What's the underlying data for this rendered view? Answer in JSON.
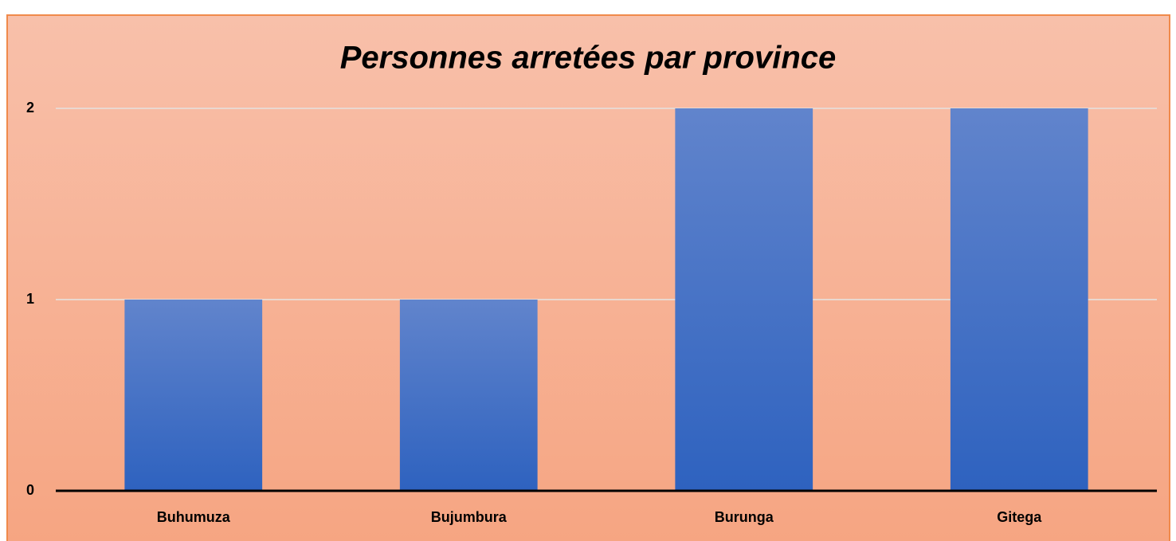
{
  "chart_data": {
    "type": "bar",
    "title": "Personnes arretées par province",
    "categories": [
      "Buhumuza",
      "Bujumbura",
      "Burunga",
      "Gitega"
    ],
    "values": [
      1,
      1,
      2,
      2
    ],
    "color": "#3f6cc6",
    "ylim": [
      0,
      2
    ],
    "yticks": [
      0,
      1,
      2
    ],
    "grid": true
  }
}
